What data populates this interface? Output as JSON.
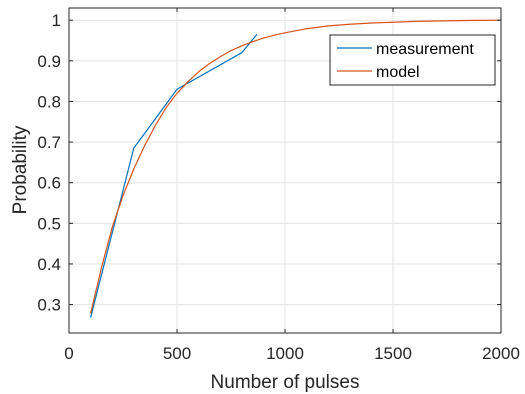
{
  "chart_data": {
    "type": "line",
    "xlabel": "Number of pulses",
    "ylabel": "Probability",
    "xlim": [
      0,
      2000
    ],
    "ylim": [
      0.23,
      1.03
    ],
    "xticks": [
      "0",
      "500",
      "1000",
      "1500",
      "2000"
    ],
    "yticks": [
      "0.3",
      "0.4",
      "0.5",
      "0.6",
      "0.7",
      "0.8",
      "0.9",
      "1"
    ],
    "grid": true,
    "legend_position": "top-right",
    "series": [
      {
        "name": "measurement",
        "color": "#0072BD",
        "x": [
          100,
          300,
          500,
          800,
          870
        ],
        "y": [
          0.268,
          0.685,
          0.83,
          0.92,
          0.965
        ]
      },
      {
        "name": "model",
        "color": "#D95319",
        "x": [
          100,
          150,
          200,
          250,
          300,
          350,
          400,
          450,
          500,
          550,
          600,
          650,
          700,
          750,
          800,
          850,
          900,
          950,
          1000,
          1100,
          1200,
          1300,
          1400,
          1500,
          1600,
          1700,
          1800,
          1900,
          2000
        ],
        "y": [
          0.278,
          0.39,
          0.49,
          0.568,
          0.634,
          0.691,
          0.741,
          0.785,
          0.82,
          0.848,
          0.873,
          0.893,
          0.91,
          0.925,
          0.937,
          0.947,
          0.956,
          0.963,
          0.969,
          0.979,
          0.986,
          0.99,
          0.993,
          0.995,
          0.997,
          0.998,
          0.999,
          0.9995,
          1.0
        ]
      }
    ]
  }
}
